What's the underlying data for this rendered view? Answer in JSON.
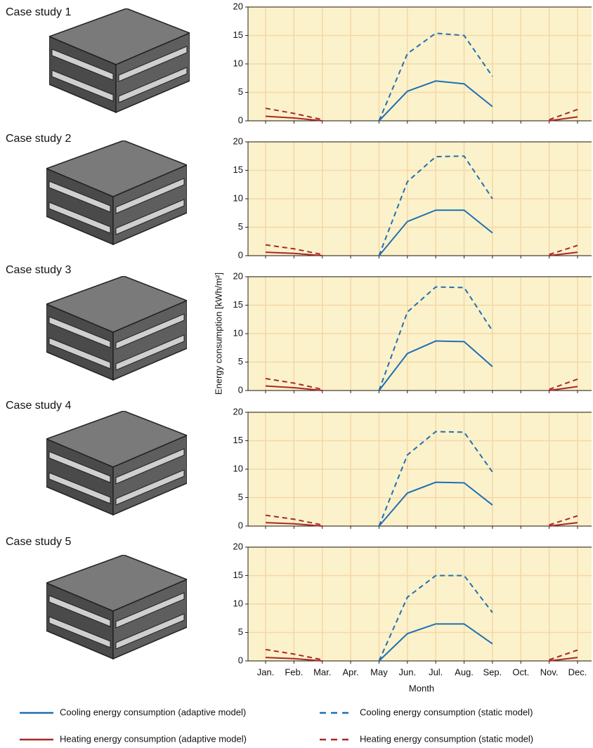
{
  "chart_data": [
    {
      "type": "line",
      "title": "Case study 1",
      "categories": [
        "Jan.",
        "Feb.",
        "Mar.",
        "Apr.",
        "May",
        "Jun.",
        "Jul.",
        "Aug.",
        "Sep.",
        "Oct.",
        "Nov.",
        "Dec."
      ],
      "ylim": [
        0,
        20
      ],
      "yticks": [
        0,
        5,
        10,
        15,
        20
      ],
      "grid": true,
      "series": [
        {
          "name": "Cooling energy consumption (adaptive model)",
          "color": "#1f6fb5",
          "dashed": false,
          "values": [
            null,
            null,
            null,
            null,
            0,
            5.2,
            7.0,
            6.5,
            2.5,
            null,
            null,
            null
          ]
        },
        {
          "name": "Cooling energy consumption (static model)",
          "color": "#1f6fb5",
          "dashed": true,
          "values": [
            null,
            null,
            null,
            null,
            0,
            11.8,
            15.4,
            15.0,
            7.8,
            null,
            null,
            null
          ]
        },
        {
          "name": "Heating energy consumption (adaptive model)",
          "color": "#a8282a",
          "dashed": false,
          "values": [
            0.8,
            0.5,
            0,
            null,
            null,
            null,
            null,
            null,
            null,
            null,
            0,
            0.7
          ]
        },
        {
          "name": "Heating energy consumption (static model)",
          "color": "#a8282a",
          "dashed": true,
          "values": [
            2.2,
            1.3,
            0.2,
            null,
            null,
            null,
            null,
            null,
            null,
            null,
            0.2,
            2.0
          ]
        }
      ]
    },
    {
      "type": "line",
      "title": "Case study 2",
      "categories": [
        "Jan.",
        "Feb.",
        "Mar.",
        "Apr.",
        "May",
        "Jun.",
        "Jul.",
        "Aug.",
        "Sep.",
        "Oct.",
        "Nov.",
        "Dec."
      ],
      "ylim": [
        0,
        20
      ],
      "yticks": [
        0,
        5,
        10,
        15,
        20
      ],
      "grid": true,
      "series": [
        {
          "name": "Cooling energy consumption (adaptive model)",
          "color": "#1f6fb5",
          "dashed": false,
          "values": [
            null,
            null,
            null,
            null,
            0,
            6.0,
            8.0,
            8.0,
            4.0,
            null,
            null,
            null
          ]
        },
        {
          "name": "Cooling energy consumption (static model)",
          "color": "#1f6fb5",
          "dashed": true,
          "values": [
            null,
            null,
            null,
            null,
            0,
            13.0,
            17.4,
            17.5,
            10.0,
            null,
            null,
            null
          ]
        },
        {
          "name": "Heating energy consumption (adaptive model)",
          "color": "#a8282a",
          "dashed": false,
          "values": [
            0.6,
            0.4,
            0,
            null,
            null,
            null,
            null,
            null,
            null,
            null,
            0,
            0.6
          ]
        },
        {
          "name": "Heating energy consumption (static model)",
          "color": "#a8282a",
          "dashed": true,
          "values": [
            1.9,
            1.2,
            0.2,
            null,
            null,
            null,
            null,
            null,
            null,
            null,
            0.2,
            1.8
          ]
        }
      ]
    },
    {
      "type": "line",
      "title": "Case study 3",
      "y_label": "Energy consumption [kWh/m²]",
      "categories": [
        "Jan.",
        "Feb.",
        "Mar.",
        "Apr.",
        "May",
        "Jun.",
        "Jul.",
        "Aug.",
        "Sep.",
        "Oct.",
        "Nov.",
        "Dec."
      ],
      "ylim": [
        0,
        20
      ],
      "yticks": [
        0,
        5,
        10,
        15,
        20
      ],
      "grid": true,
      "series": [
        {
          "name": "Cooling energy consumption (adaptive model)",
          "color": "#1f6fb5",
          "dashed": false,
          "values": [
            null,
            null,
            null,
            null,
            0,
            6.5,
            8.7,
            8.6,
            4.2,
            null,
            null,
            null
          ]
        },
        {
          "name": "Cooling energy consumption (static model)",
          "color": "#1f6fb5",
          "dashed": true,
          "values": [
            null,
            null,
            null,
            null,
            0,
            13.8,
            18.2,
            18.1,
            10.5,
            null,
            null,
            null
          ]
        },
        {
          "name": "Heating energy consumption (adaptive model)",
          "color": "#a8282a",
          "dashed": false,
          "values": [
            0.8,
            0.5,
            0,
            null,
            null,
            null,
            null,
            null,
            null,
            null,
            0,
            0.7
          ]
        },
        {
          "name": "Heating energy consumption (static model)",
          "color": "#a8282a",
          "dashed": true,
          "values": [
            2.1,
            1.3,
            0.2,
            null,
            null,
            null,
            null,
            null,
            null,
            null,
            0.2,
            2.0
          ]
        }
      ]
    },
    {
      "type": "line",
      "title": "Case study 4",
      "categories": [
        "Jan.",
        "Feb.",
        "Mar.",
        "Apr.",
        "May",
        "Jun.",
        "Jul.",
        "Aug.",
        "Sep.",
        "Oct.",
        "Nov.",
        "Dec."
      ],
      "ylim": [
        0,
        20
      ],
      "yticks": [
        0,
        5,
        10,
        15,
        20
      ],
      "grid": true,
      "series": [
        {
          "name": "Cooling energy consumption (adaptive model)",
          "color": "#1f6fb5",
          "dashed": false,
          "values": [
            null,
            null,
            null,
            null,
            0,
            5.8,
            7.7,
            7.6,
            3.7,
            null,
            null,
            null
          ]
        },
        {
          "name": "Cooling energy consumption (static model)",
          "color": "#1f6fb5",
          "dashed": true,
          "values": [
            null,
            null,
            null,
            null,
            0,
            12.5,
            16.6,
            16.5,
            9.5,
            null,
            null,
            null
          ]
        },
        {
          "name": "Heating energy consumption (adaptive model)",
          "color": "#a8282a",
          "dashed": false,
          "values": [
            0.6,
            0.4,
            0,
            null,
            null,
            null,
            null,
            null,
            null,
            null,
            0,
            0.6
          ]
        },
        {
          "name": "Heating energy consumption (static model)",
          "color": "#a8282a",
          "dashed": true,
          "values": [
            1.9,
            1.2,
            0.2,
            null,
            null,
            null,
            null,
            null,
            null,
            null,
            0.2,
            1.8
          ]
        }
      ]
    },
    {
      "type": "line",
      "title": "Case study 5",
      "x_label": "Month",
      "show_categories": true,
      "categories": [
        "Jan.",
        "Feb.",
        "Mar.",
        "Apr.",
        "May",
        "Jun.",
        "Jul.",
        "Aug.",
        "Sep.",
        "Oct.",
        "Nov.",
        "Dec."
      ],
      "ylim": [
        0,
        20
      ],
      "yticks": [
        0,
        5,
        10,
        15,
        20
      ],
      "grid": true,
      "series": [
        {
          "name": "Cooling energy consumption (adaptive model)",
          "color": "#1f6fb5",
          "dashed": false,
          "values": [
            null,
            null,
            null,
            null,
            0,
            4.8,
            6.5,
            6.5,
            3.0,
            null,
            null,
            null
          ]
        },
        {
          "name": "Cooling energy consumption (static model)",
          "color": "#1f6fb5",
          "dashed": true,
          "values": [
            null,
            null,
            null,
            null,
            0,
            11.2,
            15.0,
            15.0,
            8.5,
            null,
            null,
            null
          ]
        },
        {
          "name": "Heating energy consumption (adaptive model)",
          "color": "#a8282a",
          "dashed": false,
          "values": [
            0.6,
            0.4,
            0,
            null,
            null,
            null,
            null,
            null,
            null,
            null,
            0,
            0.6
          ]
        },
        {
          "name": "Heating energy consumption (static model)",
          "color": "#a8282a",
          "dashed": true,
          "values": [
            2.0,
            1.2,
            0.2,
            null,
            null,
            null,
            null,
            null,
            null,
            null,
            0.2,
            1.9
          ]
        }
      ]
    }
  ]
}
